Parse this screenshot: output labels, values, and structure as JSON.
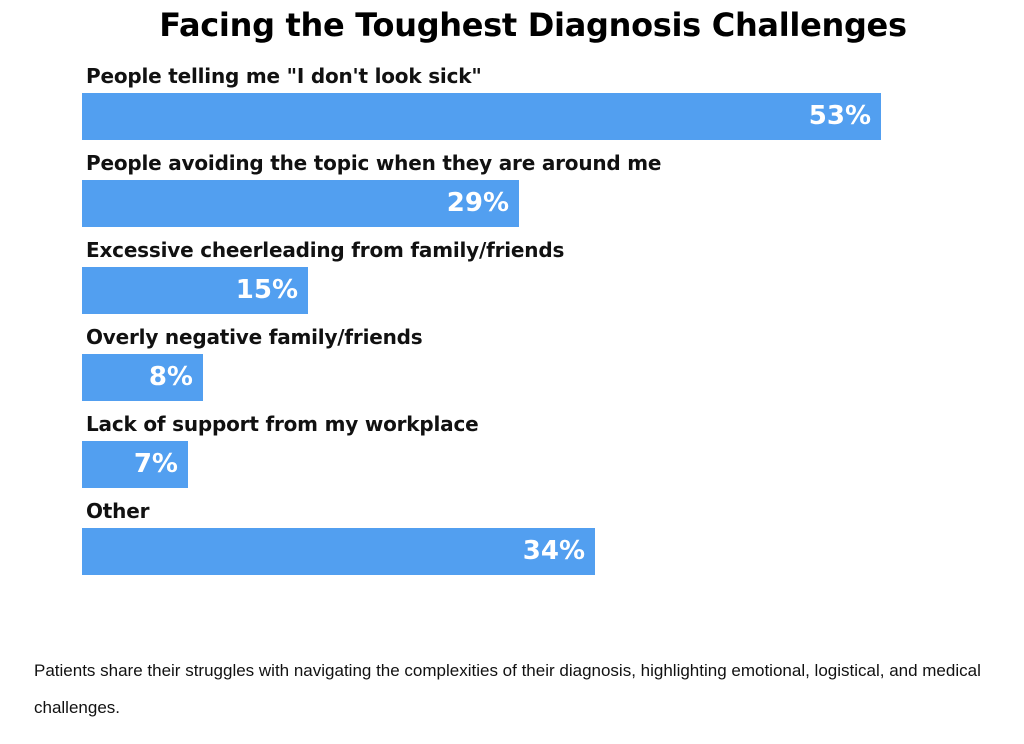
{
  "colors": {
    "bar": "#529ff0",
    "value_label": "#ffffff"
  },
  "chart_data": {
    "type": "bar",
    "orientation": "horizontal",
    "title": "Facing the Toughest Diagnosis Challenges",
    "categories": [
      "People telling me \"I don't look sick\"",
      "People avoiding the topic when they are around me",
      "Excessive cheerleading from family/friends",
      "Overly negative family/friends",
      "Lack of support from my workplace",
      "Other"
    ],
    "values": [
      53,
      29,
      15,
      8,
      7,
      34
    ],
    "value_labels": [
      "53%",
      "29%",
      "15%",
      "8%",
      "7%",
      "34%"
    ],
    "xlim": [
      0,
      61
    ],
    "grid": false,
    "legend": "none"
  },
  "caption": "Patients share their struggles with navigating the complexities of their diagnosis, highlighting emotional, logistical, and medical challenges."
}
